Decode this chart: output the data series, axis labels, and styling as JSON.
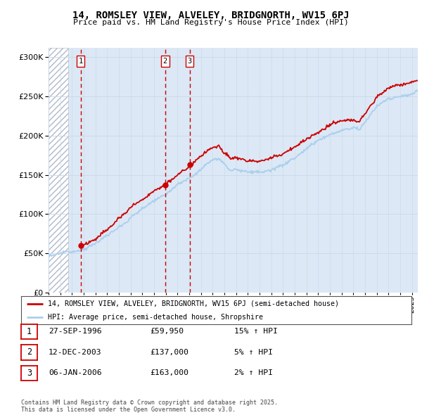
{
  "title_line1": "14, ROMSLEY VIEW, ALVELEY, BRIDGNORTH, WV15 6PJ",
  "title_line2": "Price paid vs. HM Land Registry's House Price Index (HPI)",
  "ylabel_ticks": [
    "£0",
    "£50K",
    "£100K",
    "£150K",
    "£200K",
    "£250K",
    "£300K"
  ],
  "ytick_values": [
    0,
    50000,
    100000,
    150000,
    200000,
    250000,
    300000
  ],
  "ylim": [
    0,
    312000
  ],
  "xlim_start": 1994.0,
  "xlim_end": 2025.5,
  "purchases": [
    {
      "label": "1",
      "date": 1996.74,
      "price": 59950
    },
    {
      "label": "2",
      "date": 2003.95,
      "price": 137000
    },
    {
      "label": "3",
      "date": 2006.03,
      "price": 163000
    }
  ],
  "legend_line1": "14, ROMSLEY VIEW, ALVELEY, BRIDGNORTH, WV15 6PJ (semi-detached house)",
  "legend_line2": "HPI: Average price, semi-detached house, Shropshire",
  "table_rows": [
    [
      "1",
      "27-SEP-1996",
      "£59,950",
      "15% ↑ HPI"
    ],
    [
      "2",
      "12-DEC-2003",
      "£137,000",
      "5% ↑ HPI"
    ],
    [
      "3",
      "06-JAN-2006",
      "£163,000",
      "2% ↑ HPI"
    ]
  ],
  "footnote": "Contains HM Land Registry data © Crown copyright and database right 2025.\nThis data is licensed under the Open Government Licence v3.0.",
  "hpi_color": "#aacfee",
  "price_color": "#cc0000",
  "grid_color": "#c8d8e8",
  "bg_color": "#dce8f5",
  "hatch_end": 1996.0,
  "n_points": 500
}
